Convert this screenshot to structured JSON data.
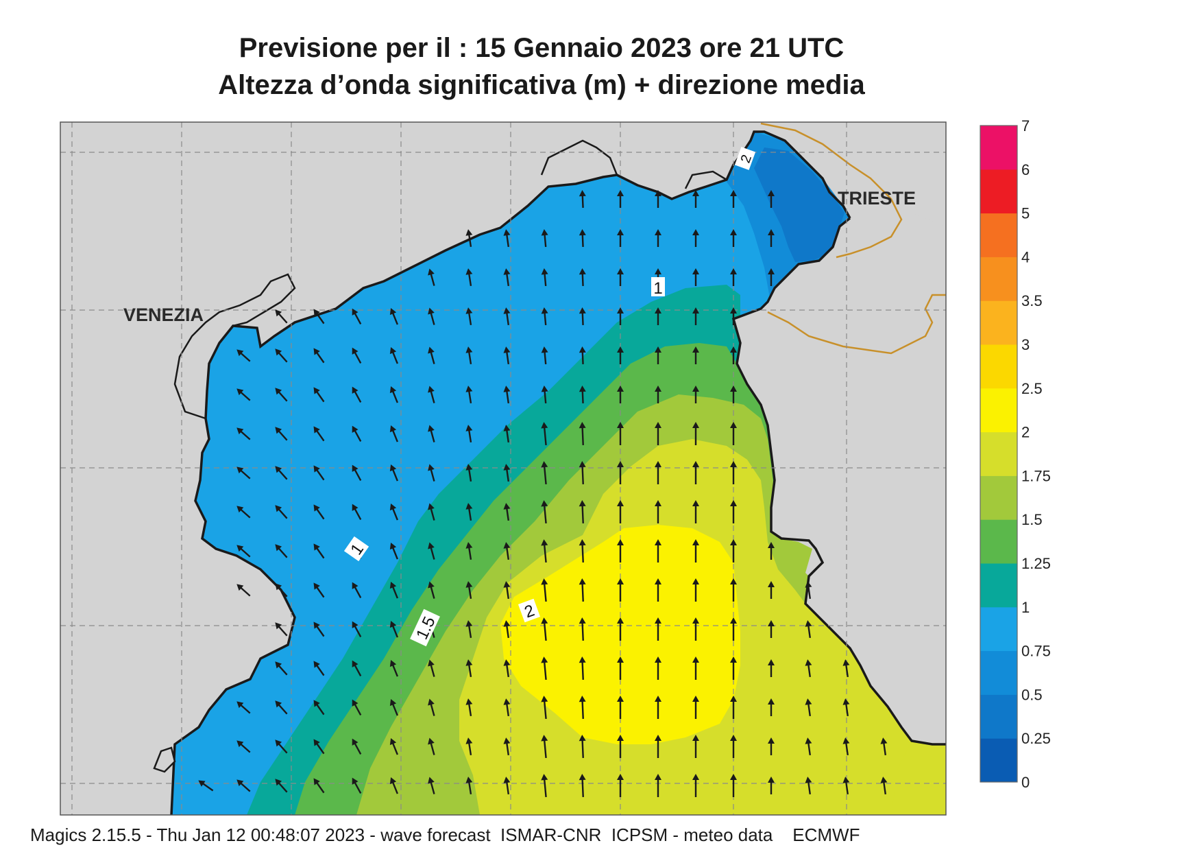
{
  "header": {
    "line1": "Previsione per il  :  15  Gennaio  2023   ore 21 UTC",
    "line2": "Altezza d’onda significativa (m) + direzione media"
  },
  "places": [
    {
      "name": "VENEZIA"
    },
    {
      "name": "TRIESTE"
    }
  ],
  "contour_labels": [
    "1",
    "1",
    "1.5",
    "2",
    "2"
  ],
  "colorbar": {
    "ticks": [
      "0",
      "0.25",
      "0.5",
      "0.75",
      "1",
      "1.25",
      "1.5",
      "1.75",
      "2",
      "2.5",
      "3",
      "3.5",
      "4",
      "5",
      "6",
      "7"
    ],
    "colors": [
      "#0a5cb3",
      "#0f78c9",
      "#128cd8",
      "#1aa3e6",
      "#08a89a",
      "#5bb84b",
      "#a2c93b",
      "#d6de2b",
      "#fbf200",
      "#fbd800",
      "#fbb31e",
      "#f7901e",
      "#f57020",
      "#ed1c24",
      "#ec1166"
    ]
  },
  "arrow_direction": "north",
  "colors": {
    "land": "#d3d3d3",
    "coast": "#1a1a1a",
    "border": "#c8902a"
  },
  "footer": "Magics 2.15.5 - Thu Jan 12 00:48:07 2023 - wave forecast  ISMAR-CNR  ICPSM - meteo data    ECMWF"
}
